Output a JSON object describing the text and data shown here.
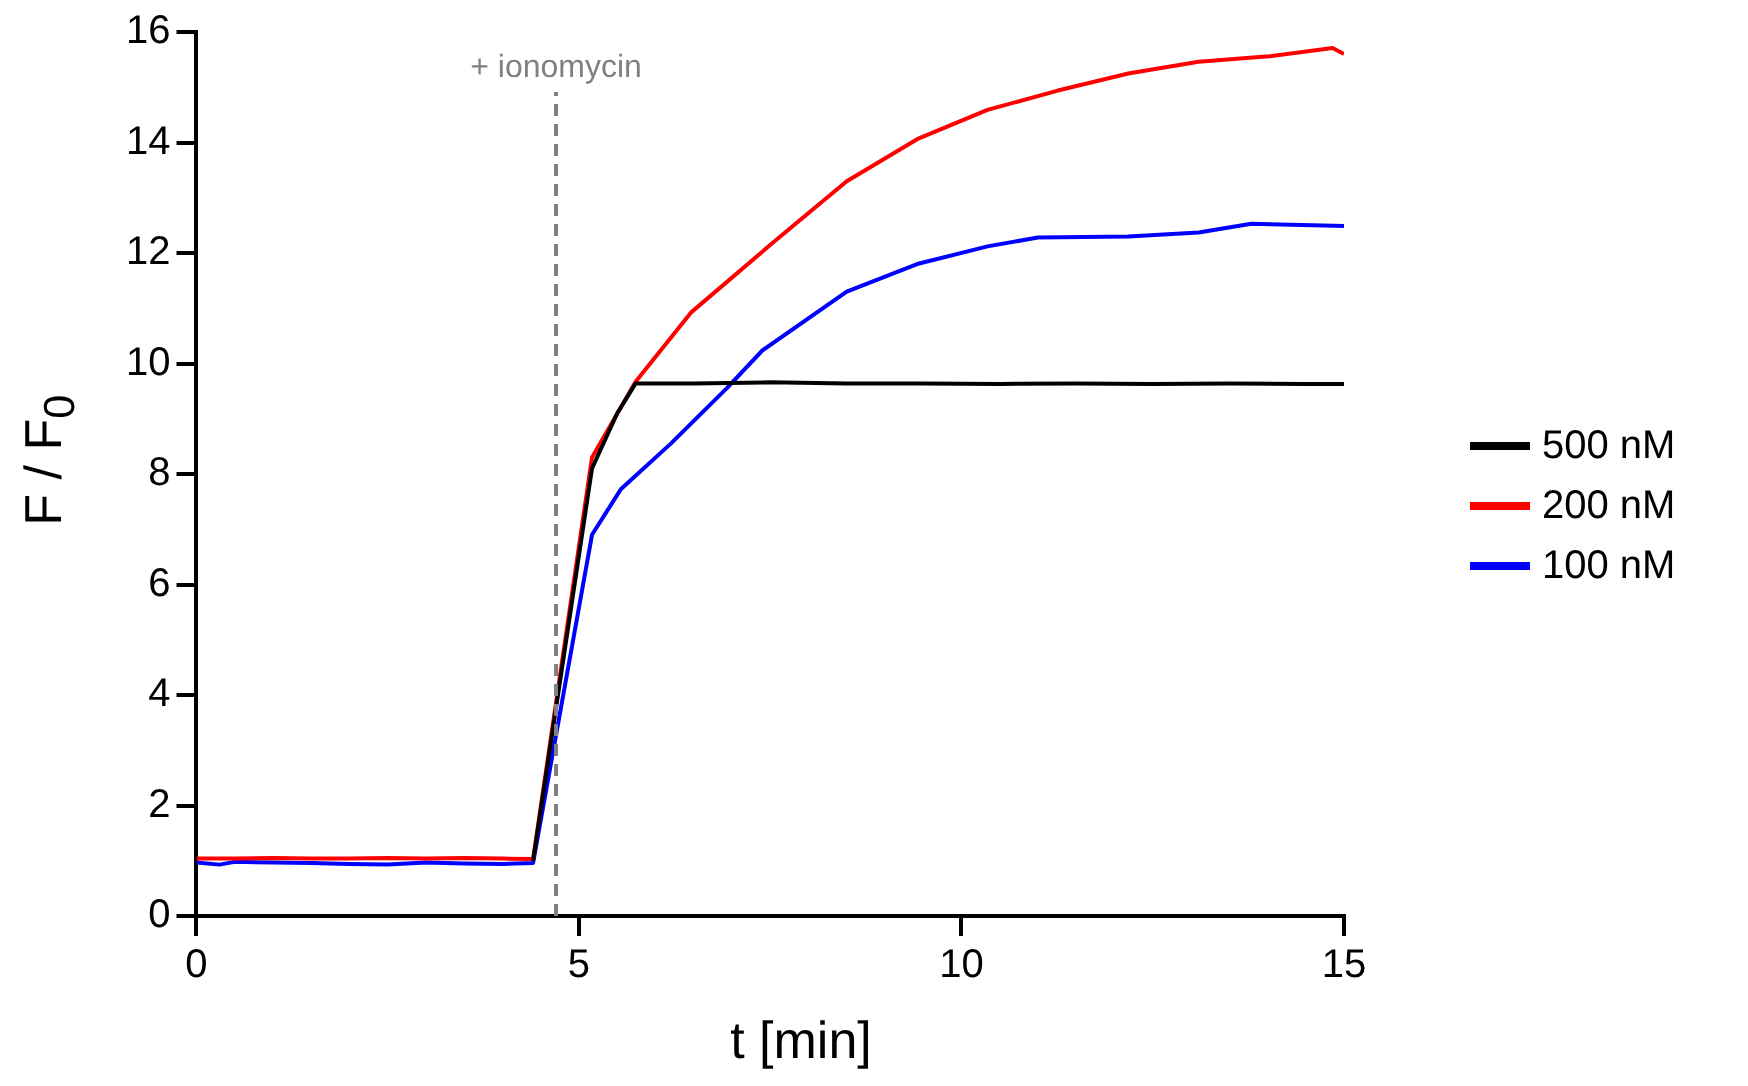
{
  "chart_data": {
    "type": "line",
    "xlabel": "t [min]",
    "ylabel": "F / F$_{0}$",
    "xlim": [
      0,
      15
    ],
    "xticks": [
      0,
      5,
      10,
      15
    ],
    "ylim": [
      0,
      16
    ],
    "yticks": [
      0,
      2,
      4,
      6,
      8,
      10,
      12,
      14,
      16
    ],
    "grid": false,
    "legend": "right",
    "marker": "none",
    "line_style": "solid",
    "ref_lines": [
      {
        "axis": "x",
        "value": 4.7,
        "label": "+ ionomycin",
        "color": "#808080",
        "line_style": "dashed"
      }
    ],
    "series": [
      {
        "name": "500 nM",
        "color": "#000000",
        "x": [
          4.4,
          5.17,
          5.5,
          5.74,
          6.5,
          7.5,
          8.5,
          9.5,
          10.5,
          11.5,
          12.5,
          13.5,
          14.5,
          15
        ],
        "values": [
          1,
          8.1,
          9.1,
          9.64,
          9.64,
          9.66,
          9.64,
          9.64,
          9.63,
          9.64,
          9.63,
          9.64,
          9.63,
          9.63
        ]
      },
      {
        "name": "200 nM",
        "color": "#ff0000",
        "x": [
          0,
          0.5,
          1,
          1.5,
          2,
          2.5,
          3,
          3.5,
          4,
          4.4,
          5.17,
          5.74,
          6.47,
          7.58,
          8.5,
          9.42,
          10.34,
          11.26,
          12.18,
          13.1,
          14.02,
          14.85,
          15
        ],
        "values": [
          1.04,
          1.04,
          1.05,
          1.04,
          1.04,
          1.05,
          1.04,
          1.05,
          1.04,
          1.03,
          8.3,
          9.67,
          10.93,
          12.24,
          13.3,
          14.06,
          14.59,
          14.94,
          15.25,
          15.46,
          15.56,
          15.71,
          15.6
        ]
      },
      {
        "name": "100 nM",
        "color": "#0000ff",
        "x": [
          0,
          0.3,
          0.5,
          1,
          1.5,
          2,
          2.5,
          3,
          3.5,
          4,
          4.4,
          5.17,
          5.55,
          6.2,
          6.93,
          7.4,
          8.5,
          9.42,
          10.34,
          11,
          12.18,
          13.1,
          13.79,
          15
        ],
        "values": [
          0.97,
          0.93,
          0.98,
          0.97,
          0.96,
          0.94,
          0.93,
          0.97,
          0.95,
          0.94,
          0.96,
          6.9,
          7.73,
          8.55,
          9.55,
          10.24,
          11.3,
          11.8,
          12.12,
          12.28,
          12.3,
          12.37,
          12.53,
          12.49
        ]
      }
    ]
  }
}
